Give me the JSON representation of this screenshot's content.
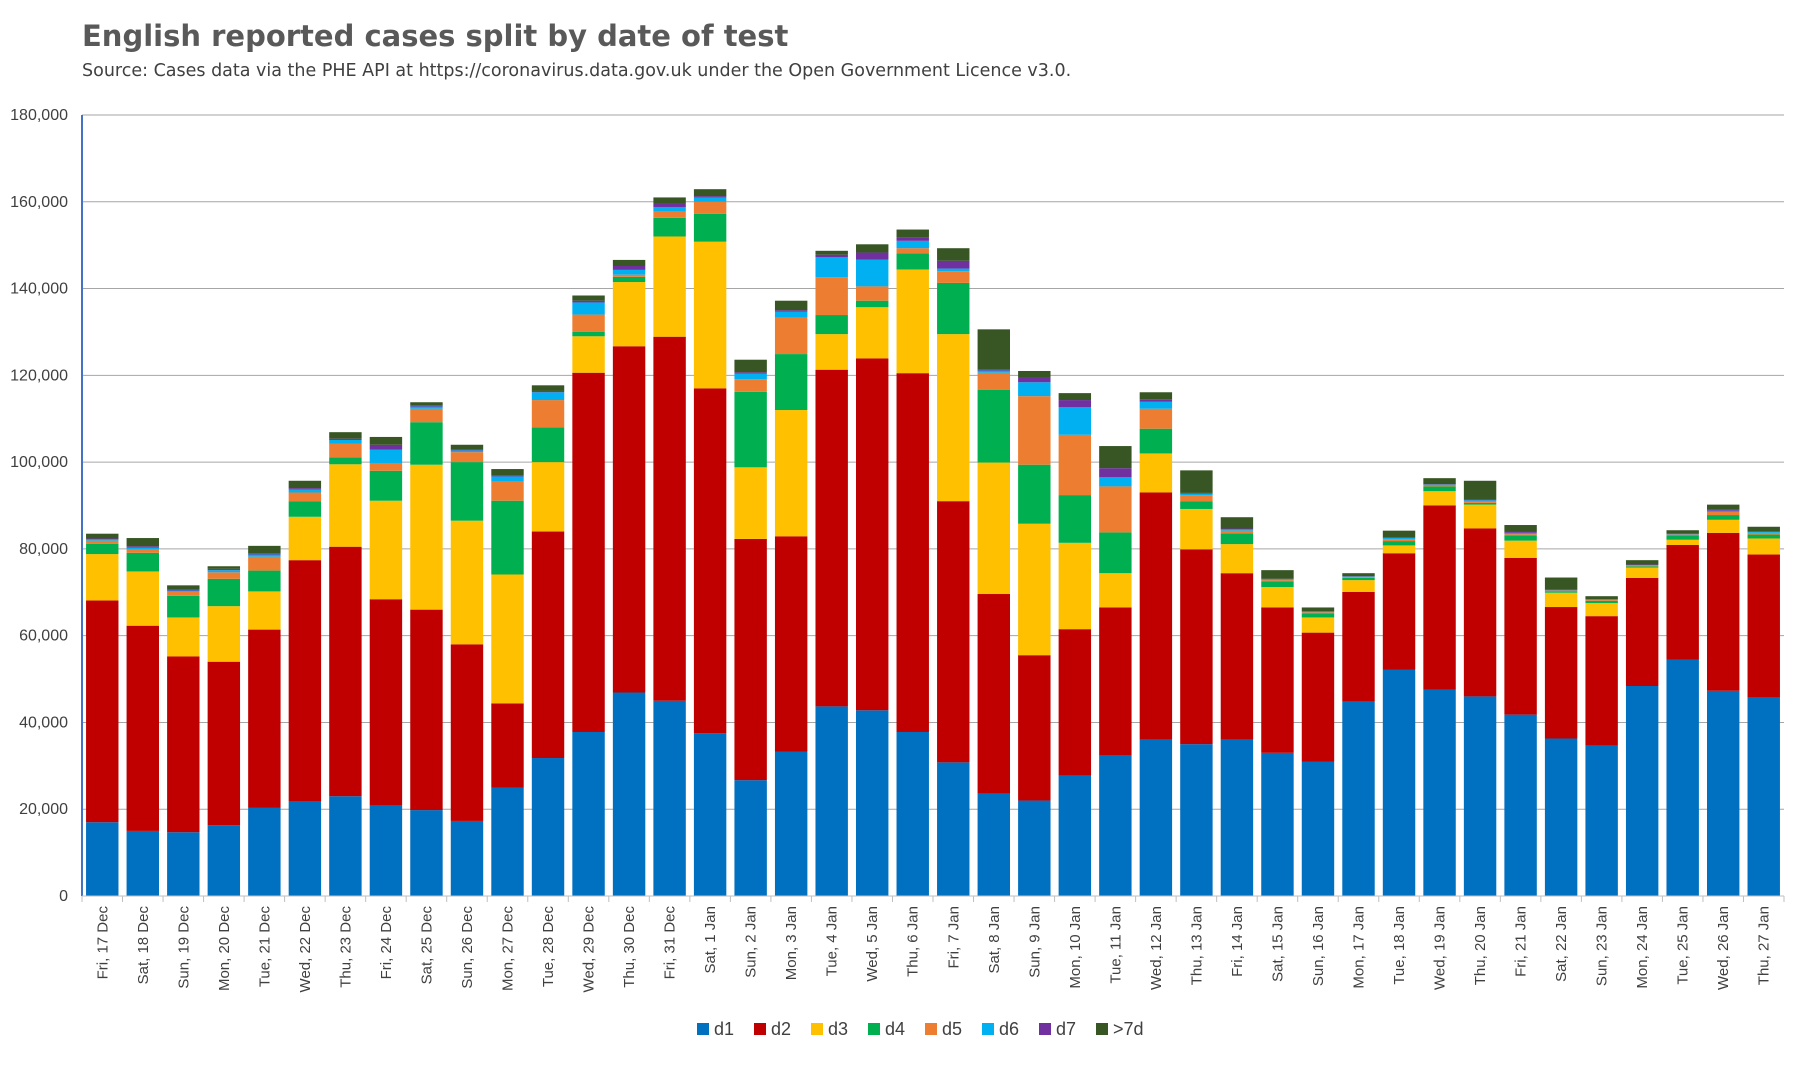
{
  "chart_data": {
    "type": "bar",
    "stacked": true,
    "title": "English reported cases split by date of test",
    "subtitle": "Source: Cases data via the PHE API at https://coronavirus.data.gov.uk under the Open Government Licence v3.0.",
    "xlabel": "",
    "ylabel": "",
    "ylim": [
      0,
      180000
    ],
    "yticks": [
      0,
      20000,
      40000,
      60000,
      80000,
      100000,
      120000,
      140000,
      160000,
      180000
    ],
    "ytick_labels": [
      "0",
      "20,000",
      "40,000",
      "60,000",
      "80,000",
      "100,000",
      "120,000",
      "140,000",
      "160,000",
      "180,000"
    ],
    "grid": true,
    "legend_position": "bottom",
    "categories": [
      "Fri, 17 Dec",
      "Sat, 18 Dec",
      "Sun, 19 Dec",
      "Mon, 20 Dec",
      "Tue, 21 Dec",
      "Wed, 22 Dec",
      "Thu, 23 Dec",
      "Fri, 24 Dec",
      "Sat, 25 Dec",
      "Sun, 26 Dec",
      "Mon, 27 Dec",
      "Tue, 28 Dec",
      "Wed, 29 Dec",
      "Thu, 30 Dec",
      "Fri, 31 Dec",
      "Sat, 1 Jan",
      "Sun, 2 Jan",
      "Mon, 3 Jan",
      "Tue, 4 Jan",
      "Wed, 5 Jan",
      "Thu, 6 Jan",
      "Fri, 7 Jan",
      "Sat, 8 Jan",
      "Sun, 9 Jan",
      "Mon, 10 Jan",
      "Tue, 11 Jan",
      "Wed, 12 Jan",
      "Thu, 13 Jan",
      "Fri, 14 Jan",
      "Sat, 15 Jan",
      "Sun, 16 Jan",
      "Mon, 17 Jan",
      "Tue, 18 Jan",
      "Wed, 19 Jan",
      "Thu, 20 Jan",
      "Fri, 21 Jan",
      "Sat, 22 Jan",
      "Sun, 23 Jan",
      "Mon, 24 Jan",
      "Tue, 25 Jan",
      "Wed, 26 Jan",
      "Thu, 27 Jan"
    ],
    "series": [
      {
        "name": "d1",
        "color": "#0070c0",
        "values": [
          17000,
          15000,
          14700,
          16300,
          20300,
          21800,
          23000,
          20800,
          19800,
          17300,
          25000,
          31800,
          37800,
          46900,
          45000,
          37500,
          26700,
          33300,
          43700,
          42800,
          37800,
          30800,
          23600,
          22000,
          27700,
          32400,
          36000,
          35000,
          36000,
          33000,
          31000,
          44800,
          52200,
          47600,
          46000,
          41800,
          36300,
          34700,
          48400,
          54500,
          47300,
          45700
        ]
      },
      {
        "name": "d2",
        "color": "#c00000",
        "values": [
          51100,
          47300,
          40500,
          37700,
          41100,
          55600,
          57500,
          47600,
          46200,
          40700,
          19400,
          52200,
          82800,
          79800,
          83900,
          79500,
          55600,
          49600,
          77600,
          81100,
          82700,
          60200,
          46000,
          33500,
          33800,
          34100,
          57000,
          44900,
          38400,
          33500,
          29700,
          25300,
          26800,
          42400,
          38700,
          36100,
          30300,
          29800,
          24900,
          26400,
          36400,
          33000
        ]
      },
      {
        "name": "d3",
        "color": "#ffc000",
        "values": [
          10700,
          12500,
          9000,
          12800,
          8800,
          10000,
          19000,
          22700,
          33400,
          28500,
          29700,
          16000,
          8400,
          14800,
          23100,
          33800,
          16500,
          29100,
          8200,
          11800,
          23900,
          38500,
          30300,
          30300,
          19900,
          7900,
          9000,
          9300,
          6700,
          4700,
          3500,
          2700,
          1800,
          3300,
          5500,
          4000,
          3300,
          3000,
          2400,
          1200,
          3000,
          3700
        ]
      },
      {
        "name": "d4",
        "color": "#00b050",
        "values": [
          2400,
          4300,
          5000,
          6300,
          4800,
          3600,
          1600,
          6900,
          9800,
          13500,
          17000,
          8000,
          1000,
          1200,
          4300,
          6400,
          17400,
          12900,
          4400,
          1500,
          3700,
          11800,
          16800,
          13600,
          11000,
          9400,
          5700,
          1800,
          2500,
          1300,
          900,
          500,
          1000,
          1100,
          400,
          1200,
          300,
          500,
          300,
          1000,
          1100,
          900
        ]
      },
      {
        "name": "d5",
        "color": "#ed7d31",
        "values": [
          700,
          800,
          900,
          1500,
          3200,
          2000,
          3100,
          1800,
          3100,
          2300,
          4400,
          6300,
          4000,
          500,
          1400,
          2800,
          2900,
          8400,
          8700,
          3300,
          1200,
          2700,
          3900,
          15800,
          13900,
          10600,
          4600,
          1400,
          600,
          300,
          300,
          200,
          400,
          200,
          300,
          300,
          200,
          200,
          200,
          200,
          700,
          400
        ]
      },
      {
        "name": "d6",
        "color": "#00b0f0",
        "values": [
          300,
          400,
          300,
          500,
          500,
          700,
          900,
          3100,
          500,
          400,
          1200,
          1800,
          2800,
          1100,
          1100,
          1000,
          1300,
          1400,
          4600,
          6200,
          1700,
          600,
          500,
          3200,
          6400,
          2100,
          1600,
          300,
          300,
          200,
          100,
          100,
          300,
          200,
          300,
          300,
          100,
          100,
          100,
          100,
          300,
          200
        ]
      },
      {
        "name": "d7",
        "color": "#7030a0",
        "values": [
          200,
          300,
          200,
          300,
          300,
          300,
          300,
          1100,
          300,
          300,
          300,
          300,
          400,
          900,
          700,
          300,
          300,
          300,
          600,
          1600,
          700,
          1800,
          200,
          1000,
          1600,
          2100,
          600,
          200,
          200,
          100,
          100,
          100,
          200,
          100,
          200,
          200,
          100,
          100,
          100,
          100,
          200,
          200
        ]
      },
      {
        "name": ">7d",
        "color": "#375623",
        "values": [
          1100,
          1900,
          1000,
          600,
          1700,
          1700,
          1500,
          1800,
          700,
          1000,
          1400,
          1300,
          1200,
          1400,
          1500,
          1600,
          2900,
          2200,
          900,
          1900,
          1900,
          2900,
          9300,
          1600,
          1600,
          5100,
          1600,
          5200,
          2600,
          2000,
          900,
          700,
          1500,
          1400,
          4300,
          1600,
          2800,
          700,
          1000,
          800,
          1200,
          1000
        ]
      }
    ]
  }
}
